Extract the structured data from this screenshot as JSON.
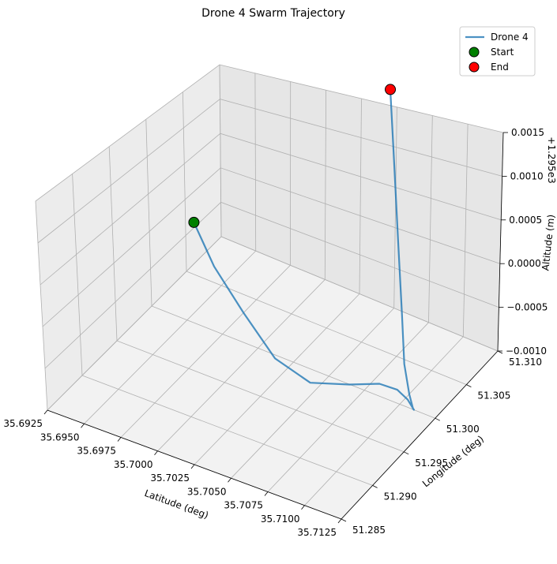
{
  "chart_data": {
    "type": "line3d",
    "title": "Drone 4 Swarm Trajectory",
    "xlabel": "Latitude (deg)",
    "ylabel": "Longitude (deg)",
    "zlabel": "Altitude (m)",
    "z_offset_label": "+1.295e3",
    "xlim": [
      35.6925,
      35.7125
    ],
    "ylim": [
      51.285,
      51.31
    ],
    "zlim": [
      -0.001,
      0.0015
    ],
    "x_ticks": [
      "35.6925",
      "35.6950",
      "35.6975",
      "35.7000",
      "35.7025",
      "35.7050",
      "35.7075",
      "35.7100",
      "35.7125"
    ],
    "y_ticks": [
      "51.285",
      "51.290",
      "51.295",
      "51.300",
      "51.305",
      "51.310"
    ],
    "z_ticks": [
      "-0.0010",
      "-0.0005",
      "0.0000",
      "0.0005",
      "0.0010",
      "0.0015"
    ],
    "grid": true,
    "legend_position": "top-right",
    "series": [
      {
        "name": "Drone 4",
        "color": "#1f77b4",
        "points": [
          {
            "x": 35.693,
            "y": 51.3052,
            "z": -0.0003
          },
          {
            "x": 35.696,
            "y": 51.302,
            "z": -0.0004
          },
          {
            "x": 35.6995,
            "y": 51.299,
            "z": -0.0005
          },
          {
            "x": 35.703,
            "y": 51.2962,
            "z": -0.0006
          },
          {
            "x": 35.706,
            "y": 51.295,
            "z": -0.0006
          },
          {
            "x": 35.7085,
            "y": 51.2955,
            "z": -0.0005
          },
          {
            "x": 35.71,
            "y": 51.2968,
            "z": -0.0005
          },
          {
            "x": 35.7108,
            "y": 51.2978,
            "z": -0.0006
          },
          {
            "x": 35.711,
            "y": 51.299,
            "z": -0.0008
          },
          {
            "x": 35.711,
            "y": 51.3,
            "z": -0.001
          },
          {
            "x": 35.7105,
            "y": 51.301,
            "z": -0.0011
          },
          {
            "x": 35.71,
            "y": 51.3015,
            "z": -0.001
          },
          {
            "x": 35.7095,
            "y": 51.3018,
            "z": -0.0007
          },
          {
            "x": 35.709,
            "y": 51.3025,
            "z": -0.0002
          },
          {
            "x": 35.708,
            "y": 51.304,
            "z": 0.0005
          },
          {
            "x": 35.7065,
            "y": 51.3065,
            "z": 0.0012
          },
          {
            "x": 35.705,
            "y": 51.309,
            "z": 0.0018
          }
        ]
      }
    ],
    "markers": [
      {
        "name": "Start",
        "color": "#008000",
        "x": 35.693,
        "y": 51.3052,
        "z": -0.0003
      },
      {
        "name": "End",
        "color": "#ff0000",
        "x": 35.705,
        "y": 51.309,
        "z": 0.0018
      }
    ]
  }
}
